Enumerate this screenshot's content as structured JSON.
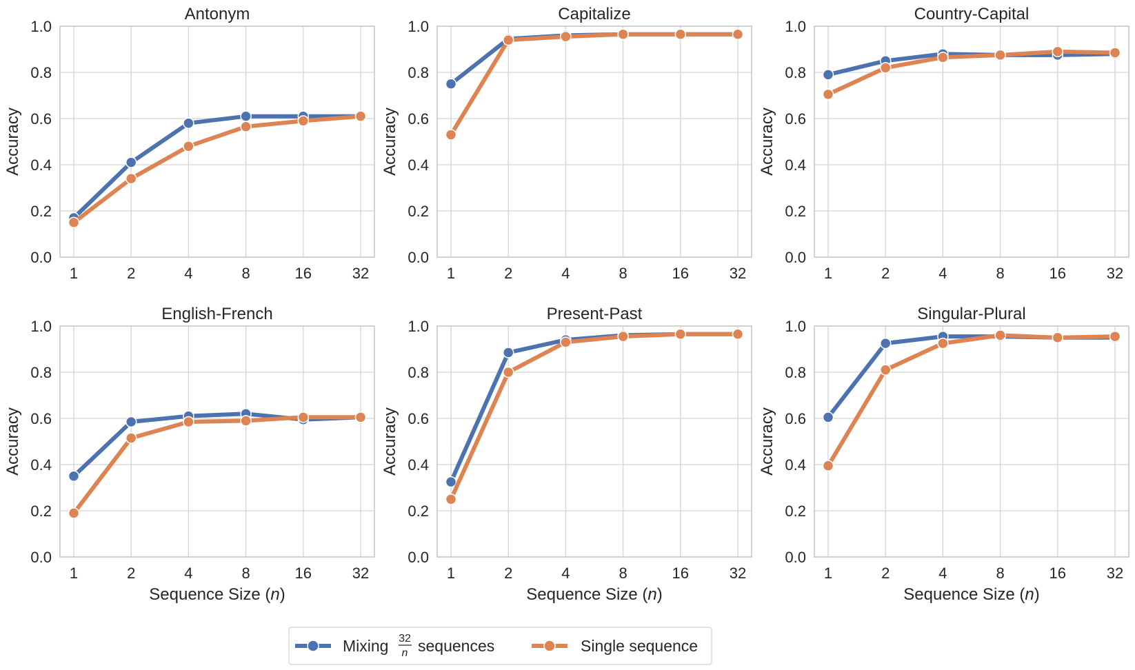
{
  "figure": {
    "x_label": "Sequence Size (",
    "x_label_var": "n",
    "x_label_close": ")",
    "y_label": "Accuracy"
  },
  "colors": {
    "mixing": "#4c72b0",
    "single": "#dd8452",
    "grid": "#d3d3d3",
    "axis": "#c8c8c8",
    "text": "#262626"
  },
  "legend": {
    "mixing_prefix": "Mixing",
    "mixing_frac_num": "32",
    "mixing_frac_den": "n",
    "mixing_suffix": "sequences",
    "single_label": "Single sequence"
  },
  "chart_data": [
    {
      "type": "line",
      "title": "Antonym",
      "categories": [
        "1",
        "2",
        "4",
        "8",
        "16",
        "32"
      ],
      "ylim": [
        0,
        1
      ],
      "yticks": [
        "0.0",
        "0.2",
        "0.4",
        "0.6",
        "0.8",
        "1.0"
      ],
      "xlabel": "",
      "ylabel": "Accuracy",
      "series": [
        {
          "name": "Mixing 32/n sequences",
          "values": [
            0.17,
            0.41,
            0.58,
            0.61,
            0.61,
            0.61
          ]
        },
        {
          "name": "Single sequence",
          "values": [
            0.15,
            0.34,
            0.48,
            0.565,
            0.59,
            0.61
          ]
        }
      ]
    },
    {
      "type": "line",
      "title": "Capitalize",
      "categories": [
        "1",
        "2",
        "4",
        "8",
        "16",
        "32"
      ],
      "ylim": [
        0,
        1
      ],
      "yticks": [
        "0.0",
        "0.2",
        "0.4",
        "0.6",
        "0.8",
        "1.0"
      ],
      "xlabel": "",
      "ylabel": "Accuracy",
      "series": [
        {
          "name": "Mixing 32/n sequences",
          "values": [
            0.75,
            0.945,
            0.96,
            0.965,
            0.965,
            0.965
          ]
        },
        {
          "name": "Single sequence",
          "values": [
            0.53,
            0.94,
            0.955,
            0.965,
            0.965,
            0.965
          ]
        }
      ]
    },
    {
      "type": "line",
      "title": "Country-Capital",
      "categories": [
        "1",
        "2",
        "4",
        "8",
        "16",
        "32"
      ],
      "ylim": [
        0,
        1
      ],
      "yticks": [
        "0.0",
        "0.2",
        "0.4",
        "0.6",
        "0.8",
        "1.0"
      ],
      "xlabel": "",
      "ylabel": "Accuracy",
      "series": [
        {
          "name": "Mixing 32/n sequences",
          "values": [
            0.79,
            0.85,
            0.88,
            0.875,
            0.875,
            0.88
          ]
        },
        {
          "name": "Single sequence",
          "values": [
            0.705,
            0.82,
            0.865,
            0.875,
            0.89,
            0.885
          ]
        }
      ]
    },
    {
      "type": "line",
      "title": "English-French",
      "categories": [
        "1",
        "2",
        "4",
        "8",
        "16",
        "32"
      ],
      "ylim": [
        0,
        1
      ],
      "yticks": [
        "0.0",
        "0.2",
        "0.4",
        "0.6",
        "0.8",
        "1.0"
      ],
      "xlabel": "Sequence Size (n)",
      "ylabel": "Accuracy",
      "series": [
        {
          "name": "Mixing 32/n sequences",
          "values": [
            0.35,
            0.585,
            0.61,
            0.62,
            0.595,
            0.605
          ]
        },
        {
          "name": "Single sequence",
          "values": [
            0.19,
            0.515,
            0.585,
            0.59,
            0.605,
            0.605
          ]
        }
      ]
    },
    {
      "type": "line",
      "title": "Present-Past",
      "categories": [
        "1",
        "2",
        "4",
        "8",
        "16",
        "32"
      ],
      "ylim": [
        0,
        1
      ],
      "yticks": [
        "0.0",
        "0.2",
        "0.4",
        "0.6",
        "0.8",
        "1.0"
      ],
      "xlabel": "Sequence Size (n)",
      "ylabel": "Accuracy",
      "series": [
        {
          "name": "Mixing 32/n sequences",
          "values": [
            0.325,
            0.885,
            0.94,
            0.96,
            0.965,
            0.965
          ]
        },
        {
          "name": "Single sequence",
          "values": [
            0.25,
            0.8,
            0.93,
            0.955,
            0.965,
            0.965
          ]
        }
      ]
    },
    {
      "type": "line",
      "title": "Singular-Plural",
      "categories": [
        "1",
        "2",
        "4",
        "8",
        "16",
        "32"
      ],
      "ylim": [
        0,
        1
      ],
      "yticks": [
        "0.0",
        "0.2",
        "0.4",
        "0.6",
        "0.8",
        "1.0"
      ],
      "xlabel": "Sequence Size (n)",
      "ylabel": "Accuracy",
      "series": [
        {
          "name": "Mixing 32/n sequences",
          "values": [
            0.605,
            0.925,
            0.955,
            0.955,
            0.95,
            0.95
          ]
        },
        {
          "name": "Single sequence",
          "values": [
            0.395,
            0.81,
            0.925,
            0.96,
            0.95,
            0.955
          ]
        }
      ]
    }
  ]
}
